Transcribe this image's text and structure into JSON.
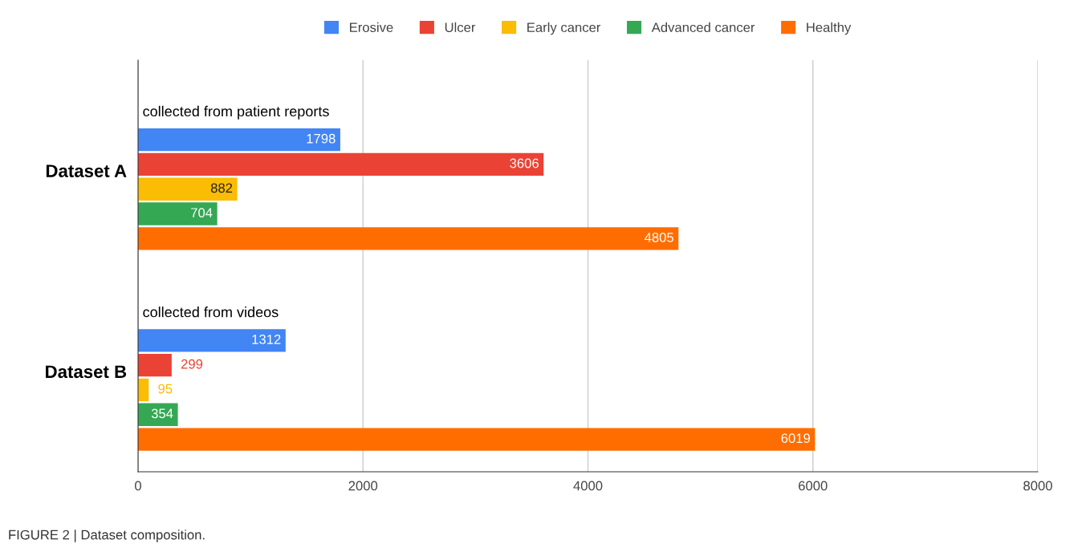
{
  "chart_data": {
    "type": "bar",
    "orientation": "horizontal",
    "title": "FIGURE 2 | Dataset composition.",
    "categories": [
      "Dataset A",
      "Dataset B"
    ],
    "series": [
      {
        "name": "Erosive",
        "color": "#4285f4",
        "values": [
          1798,
          1312
        ]
      },
      {
        "name": "Ulcer",
        "color": "#ea4335",
        "values": [
          3606,
          299
        ]
      },
      {
        "name": "Early cancer",
        "color": "#fbbc04",
        "values": [
          882,
          95
        ]
      },
      {
        "name": "Advanced cancer",
        "color": "#34a853",
        "values": [
          704,
          354
        ]
      },
      {
        "name": "Healthy",
        "color": "#ff6d01",
        "values": [
          4805,
          6019
        ]
      }
    ],
    "annotations": [
      "collected from patient reports",
      "collected from videos"
    ],
    "xlim": [
      0,
      8000
    ],
    "xticks": [
      0,
      2000,
      4000,
      6000,
      8000
    ],
    "grid": "x",
    "legend": "top",
    "data_labels": true
  }
}
